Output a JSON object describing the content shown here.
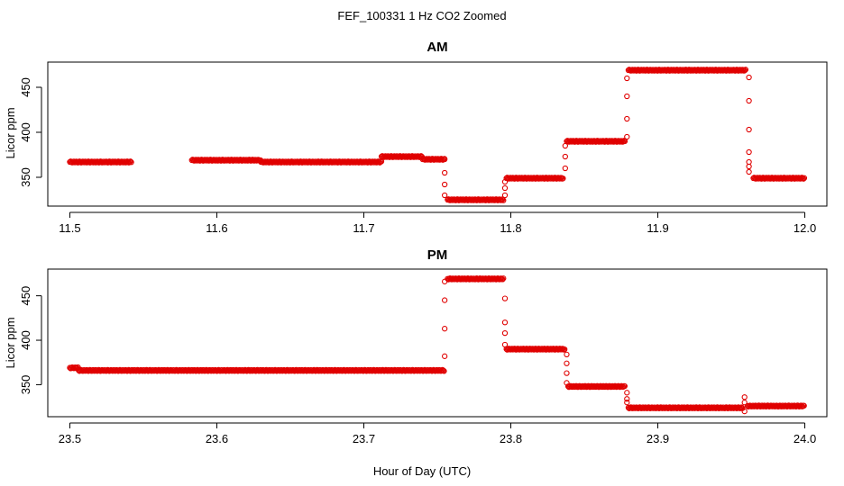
{
  "figure": {
    "title": "FEF_100331  1 Hz CO2 Zoomed",
    "xlabel": "Hour of Day (UTC)"
  },
  "chart_data": [
    {
      "type": "scatter",
      "title": "AM",
      "ylabel": "Licor ppm",
      "xlabel": "",
      "xlim": [
        11.485,
        12.015
      ],
      "ylim": [
        318,
        478
      ],
      "xticks": [
        11.5,
        11.6,
        11.7,
        11.8,
        11.9,
        12.0
      ],
      "xtick_labels": [
        "11.5",
        "11.6",
        "11.7",
        "11.8",
        "11.9",
        "12.0"
      ],
      "yticks": [
        350,
        400,
        450
      ],
      "ytick_labels": [
        "350",
        "400",
        "450"
      ],
      "marker": "open-circle",
      "color": "#e00000",
      "segments": [
        {
          "from": 11.5,
          "to": 11.542,
          "y": 367
        },
        {
          "from": 11.583,
          "to": 11.63,
          "y": 369
        },
        {
          "from": 11.63,
          "to": 11.712,
          "y": 367
        },
        {
          "from": 11.712,
          "to": 11.74,
          "y": 373
        },
        {
          "from": 11.74,
          "to": 11.755,
          "y": 370
        },
        {
          "from": 11.757,
          "to": 11.795,
          "y": 325
        },
        {
          "from": 11.797,
          "to": 11.836,
          "y": 349
        },
        {
          "from": 11.838,
          "to": 11.878,
          "y": 390
        },
        {
          "from": 11.88,
          "to": 11.96,
          "y": 469
        },
        {
          "from": 11.965,
          "to": 12.0,
          "y": 349
        }
      ],
      "transitions": [
        {
          "x": 11.755,
          "y": [
            370,
            355,
            342,
            330
          ]
        },
        {
          "x": 11.796,
          "y": [
            330,
            338,
            345
          ]
        },
        {
          "x": 11.837,
          "y": [
            360,
            373,
            385
          ]
        },
        {
          "x": 11.879,
          "y": [
            395,
            415,
            440,
            460
          ]
        },
        {
          "x": 11.962,
          "y": [
            461,
            435,
            403,
            378,
            367,
            362,
            356
          ]
        }
      ]
    },
    {
      "type": "scatter",
      "title": "PM",
      "ylabel": "Licor ppm",
      "xlabel": "",
      "xlim": [
        23.485,
        24.015
      ],
      "ylim": [
        314,
        480
      ],
      "xticks": [
        23.5,
        23.6,
        23.7,
        23.8,
        23.9,
        24.0
      ],
      "xtick_labels": [
        "23.5",
        "23.6",
        "23.7",
        "23.8",
        "23.9",
        "24.0"
      ],
      "yticks": [
        350,
        400,
        450
      ],
      "ytick_labels": [
        "350",
        "400",
        "450"
      ],
      "marker": "open-circle",
      "color": "#e00000",
      "segments": [
        {
          "from": 23.5,
          "to": 23.506,
          "y": 369
        },
        {
          "from": 23.506,
          "to": 23.755,
          "y": 366
        },
        {
          "from": 23.757,
          "to": 23.795,
          "y": 469
        },
        {
          "from": 23.797,
          "to": 23.837,
          "y": 390
        },
        {
          "from": 23.839,
          "to": 23.878,
          "y": 348
        },
        {
          "from": 23.88,
          "to": 23.958,
          "y": 324
        },
        {
          "from": 23.961,
          "to": 24.0,
          "y": 326
        }
      ],
      "transitions": [
        {
          "x": 23.755,
          "y": [
            382,
            413,
            445,
            466
          ]
        },
        {
          "x": 23.796,
          "y": [
            447,
            420,
            408,
            395
          ]
        },
        {
          "x": 23.838,
          "y": [
            384,
            374,
            363,
            352
          ]
        },
        {
          "x": 23.879,
          "y": [
            341,
            334,
            330
          ]
        },
        {
          "x": 23.959,
          "y": [
            320,
            336,
            330
          ]
        }
      ]
    }
  ]
}
